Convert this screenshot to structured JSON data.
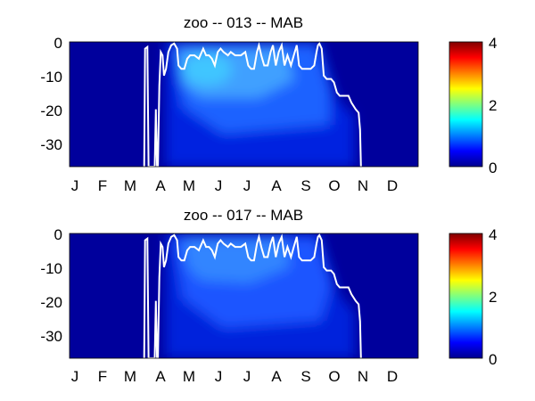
{
  "colormap": "jet",
  "chart_data": [
    {
      "type": "heatmap",
      "title": "zoo -- 013 -- MAB",
      "x": {
        "tick_labels": [
          "J",
          "F",
          "M",
          "A",
          "M",
          "J",
          "J",
          "A",
          "S",
          "O",
          "N",
          "D"
        ],
        "range": [
          0,
          12
        ]
      },
      "y": {
        "ticks": [
          0,
          -10,
          -20,
          -30
        ],
        "range": [
          -37,
          0
        ]
      },
      "colorbar": {
        "ticks": [
          0,
          2,
          4
        ],
        "range": [
          0,
          4
        ]
      },
      "overlay_line": {
        "color": "#ffffff",
        "points": [
          [
            2.57,
            -37
          ],
          [
            2.6,
            -2
          ],
          [
            2.68,
            -1.5
          ],
          [
            2.72,
            -37
          ],
          [
            2.93,
            -37
          ],
          [
            2.97,
            -20
          ],
          [
            3.01,
            -37
          ],
          [
            3.04,
            -37
          ],
          [
            3.09,
            -13
          ],
          [
            3.14,
            -3
          ],
          [
            3.2,
            -4
          ],
          [
            3.25,
            -10
          ],
          [
            3.32,
            -8
          ],
          [
            3.4,
            -3
          ],
          [
            3.5,
            -1
          ],
          [
            3.6,
            -0.5
          ],
          [
            3.7,
            -2
          ],
          [
            3.75,
            -7
          ],
          [
            3.85,
            -8
          ],
          [
            3.95,
            -8
          ],
          [
            4.05,
            -5
          ],
          [
            4.15,
            -4
          ],
          [
            4.3,
            -4
          ],
          [
            4.45,
            -5
          ],
          [
            4.6,
            -2
          ],
          [
            4.7,
            -4
          ],
          [
            4.8,
            -4
          ],
          [
            4.9,
            -5
          ],
          [
            5.0,
            -7
          ],
          [
            5.1,
            -3
          ],
          [
            5.2,
            -2
          ],
          [
            5.3,
            -3
          ],
          [
            5.45,
            -4
          ],
          [
            5.55,
            -3
          ],
          [
            5.7,
            -4
          ],
          [
            5.9,
            -4
          ],
          [
            6.05,
            -3
          ],
          [
            6.15,
            -7
          ],
          [
            6.25,
            -8
          ],
          [
            6.35,
            -8
          ],
          [
            6.45,
            -3
          ],
          [
            6.52,
            -1
          ],
          [
            6.6,
            -4
          ],
          [
            6.7,
            -7
          ],
          [
            6.82,
            -7
          ],
          [
            6.92,
            -3
          ],
          [
            7.0,
            -1
          ],
          [
            7.1,
            -7
          ],
          [
            7.2,
            -3
          ],
          [
            7.3,
            -1
          ],
          [
            7.4,
            -7
          ],
          [
            7.5,
            -4
          ],
          [
            7.62,
            -7
          ],
          [
            7.72,
            -4
          ],
          [
            7.82,
            -1
          ],
          [
            7.9,
            -7
          ],
          [
            8.0,
            -8
          ],
          [
            8.15,
            -8
          ],
          [
            8.3,
            -8
          ],
          [
            8.42,
            -7
          ],
          [
            8.5,
            -3
          ],
          [
            8.55,
            -1
          ],
          [
            8.6,
            -0.5
          ],
          [
            8.68,
            -2
          ],
          [
            8.75,
            -10
          ],
          [
            8.85,
            -11
          ],
          [
            9.0,
            -11
          ],
          [
            9.1,
            -12
          ],
          [
            9.2,
            -15
          ],
          [
            9.3,
            -16
          ],
          [
            9.4,
            -16
          ],
          [
            9.6,
            -16
          ],
          [
            9.7,
            -18
          ],
          [
            9.85,
            -20
          ],
          [
            9.95,
            -21
          ],
          [
            10.0,
            -26
          ],
          [
            10.03,
            -37
          ]
        ]
      }
    },
    {
      "type": "heatmap",
      "title": "zoo -- 017 -- MAB",
      "x": {
        "tick_labels": [
          "J",
          "F",
          "M",
          "A",
          "M",
          "J",
          "J",
          "A",
          "S",
          "O",
          "N",
          "D"
        ],
        "range": [
          0,
          12
        ]
      },
      "y": {
        "ticks": [
          0,
          -10,
          -20,
          -30
        ],
        "range": [
          -37,
          0
        ]
      },
      "colorbar": {
        "ticks": [
          0,
          2,
          4
        ],
        "range": [
          0,
          4
        ]
      },
      "overlay_line": {
        "color": "#ffffff",
        "points": [
          [
            2.57,
            -37
          ],
          [
            2.6,
            -2
          ],
          [
            2.68,
            -1.5
          ],
          [
            2.72,
            -37
          ],
          [
            2.93,
            -37
          ],
          [
            2.97,
            -20
          ],
          [
            3.01,
            -37
          ],
          [
            3.04,
            -37
          ],
          [
            3.09,
            -13
          ],
          [
            3.14,
            -3
          ],
          [
            3.2,
            -4
          ],
          [
            3.25,
            -10
          ],
          [
            3.32,
            -8
          ],
          [
            3.4,
            -3
          ],
          [
            3.5,
            -1
          ],
          [
            3.6,
            -0.5
          ],
          [
            3.7,
            -2
          ],
          [
            3.75,
            -7
          ],
          [
            3.85,
            -8
          ],
          [
            3.95,
            -8
          ],
          [
            4.05,
            -5
          ],
          [
            4.15,
            -4
          ],
          [
            4.3,
            -4
          ],
          [
            4.45,
            -5
          ],
          [
            4.6,
            -2
          ],
          [
            4.7,
            -4
          ],
          [
            4.8,
            -4
          ],
          [
            4.9,
            -5
          ],
          [
            5.0,
            -7
          ],
          [
            5.1,
            -3
          ],
          [
            5.2,
            -2
          ],
          [
            5.3,
            -3
          ],
          [
            5.45,
            -4
          ],
          [
            5.55,
            -3
          ],
          [
            5.7,
            -4
          ],
          [
            5.9,
            -4
          ],
          [
            6.05,
            -3
          ],
          [
            6.15,
            -7
          ],
          [
            6.25,
            -8
          ],
          [
            6.35,
            -8
          ],
          [
            6.45,
            -3
          ],
          [
            6.52,
            -1
          ],
          [
            6.6,
            -4
          ],
          [
            6.7,
            -7
          ],
          [
            6.82,
            -7
          ],
          [
            6.92,
            -3
          ],
          [
            7.0,
            -1
          ],
          [
            7.1,
            -7
          ],
          [
            7.2,
            -3
          ],
          [
            7.3,
            -1
          ],
          [
            7.4,
            -7
          ],
          [
            7.5,
            -4
          ],
          [
            7.62,
            -7
          ],
          [
            7.72,
            -4
          ],
          [
            7.82,
            -1
          ],
          [
            7.9,
            -7
          ],
          [
            8.0,
            -8
          ],
          [
            8.15,
            -8
          ],
          [
            8.3,
            -8
          ],
          [
            8.42,
            -7
          ],
          [
            8.5,
            -3
          ],
          [
            8.55,
            -1
          ],
          [
            8.6,
            -0.5
          ],
          [
            8.68,
            -2
          ],
          [
            8.75,
            -10
          ],
          [
            8.85,
            -11
          ],
          [
            9.0,
            -11
          ],
          [
            9.1,
            -12
          ],
          [
            9.2,
            -15
          ],
          [
            9.3,
            -16
          ],
          [
            9.4,
            -16
          ],
          [
            9.6,
            -16
          ],
          [
            9.7,
            -18
          ],
          [
            9.85,
            -20
          ],
          [
            9.95,
            -21
          ],
          [
            10.0,
            -26
          ],
          [
            10.03,
            -37
          ]
        ]
      }
    }
  ]
}
